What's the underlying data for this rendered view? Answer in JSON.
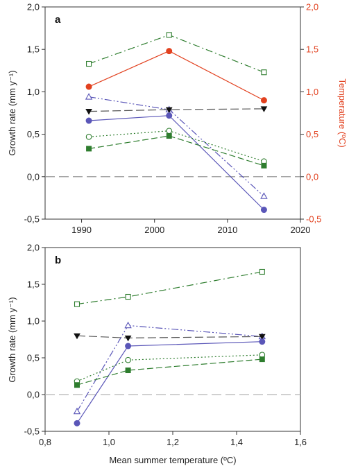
{
  "colors": {
    "green": "#2e7d2e",
    "red": "#e2411f",
    "purple": "#5a56b8",
    "gray": "#555555",
    "zero_line": "#888888",
    "zero_line_b": "#b3b3b3"
  },
  "chart_data": [
    {
      "type": "line",
      "panel_label": "a",
      "xlabel": "",
      "ylabel": "Growth rate (mm y⁻¹)",
      "y2label": "Temperature (ºC)",
      "xlim": [
        1985,
        2020
      ],
      "ylim": [
        -0.5,
        2.0
      ],
      "y2lim": [
        -0.5,
        2.0
      ],
      "x_ticks": [
        "1990",
        "2000",
        "2010",
        "2020"
      ],
      "y_ticks": [
        "-0,5",
        "0,0",
        "0,5",
        "1,0",
        "1,5",
        "2,0"
      ],
      "y2_ticks": [
        "-0,5",
        "0,0",
        "0,5",
        "1,0",
        "1,5",
        "2,0"
      ],
      "reference_line": 0,
      "x": [
        1991,
        2002,
        2015
      ],
      "series": [
        {
          "values": [
            1.33,
            1.67,
            1.23
          ],
          "marker": "open-square",
          "color": "green",
          "dash": "dashdot"
        },
        {
          "values": [
            1.06,
            1.48,
            0.9
          ],
          "marker": "filled-circle",
          "color": "red",
          "dash": "solid",
          "axis": "right"
        },
        {
          "values": [
            0.94,
            0.79,
            -0.23
          ],
          "marker": "open-triangle",
          "color": "purple",
          "dash": "dashdotdot"
        },
        {
          "values": [
            0.77,
            0.79,
            0.8
          ],
          "marker": "filled-triangle-down",
          "color": "gray",
          "dash": "longdash"
        },
        {
          "values": [
            0.66,
            0.72,
            -0.39
          ],
          "marker": "filled-circle",
          "color": "purple",
          "dash": "solid"
        },
        {
          "values": [
            0.47,
            0.54,
            0.18
          ],
          "marker": "open-circle",
          "color": "green",
          "dash": "dotted"
        },
        {
          "values": [
            0.33,
            0.48,
            0.13
          ],
          "marker": "filled-square",
          "color": "green",
          "dash": "dashed"
        }
      ]
    },
    {
      "type": "line",
      "panel_label": "b",
      "xlabel": "Mean summer temperature (ºC)",
      "ylabel": "Growth rate (mm y⁻¹)",
      "xlim": [
        0.8,
        1.6
      ],
      "ylim": [
        -0.5,
        2.0
      ],
      "x_ticks": [
        "0,8",
        "1,0",
        "1,2",
        "1,4",
        "1,6"
      ],
      "y_ticks": [
        "-0,5",
        "0,0",
        "0,5",
        "1,0",
        "1,5",
        "2,0"
      ],
      "reference_line": 0,
      "x": [
        0.9,
        1.06,
        1.48
      ],
      "series": [
        {
          "values": [
            1.23,
            1.33,
            1.67
          ],
          "marker": "open-square",
          "color": "green",
          "dash": "dashdot"
        },
        {
          "values": [
            -0.23,
            0.94,
            0.79
          ],
          "marker": "open-triangle",
          "color": "purple",
          "dash": "dashdotdot"
        },
        {
          "values": [
            0.8,
            0.77,
            0.79
          ],
          "marker": "filled-triangle-down",
          "color": "gray",
          "dash": "longdash"
        },
        {
          "values": [
            -0.39,
            0.66,
            0.72
          ],
          "marker": "filled-circle",
          "color": "purple",
          "dash": "solid"
        },
        {
          "values": [
            0.18,
            0.47,
            0.54
          ],
          "marker": "open-circle",
          "color": "green",
          "dash": "dotted"
        },
        {
          "values": [
            0.13,
            0.33,
            0.48
          ],
          "marker": "filled-square",
          "color": "green",
          "dash": "dashed"
        }
      ]
    }
  ]
}
